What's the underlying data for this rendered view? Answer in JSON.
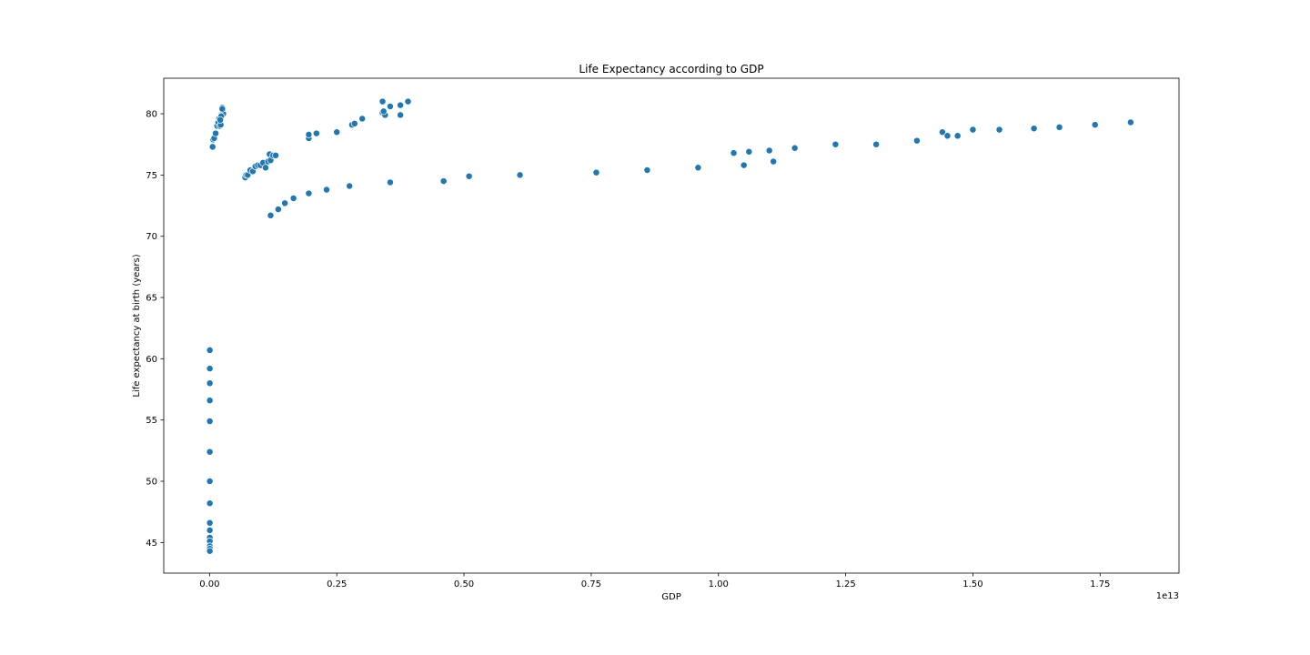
{
  "chart_data": {
    "type": "scatter",
    "title": "Life Expectancy according to GDP",
    "xlabel": "GDP",
    "ylabel": "Life expectancy at birth (years)",
    "x_offset_label": "1e13",
    "x_scale": 10000000000000.0,
    "xlim": [
      -0.09,
      1.905
    ],
    "ylim": [
      42.5,
      82.9
    ],
    "xticks": [
      0.0,
      0.25,
      0.5,
      0.75,
      1.0,
      1.25,
      1.5,
      1.75
    ],
    "xtick_labels": [
      "0.00",
      "0.25",
      "0.50",
      "0.75",
      "1.00",
      "1.25",
      "1.50",
      "1.75"
    ],
    "yticks": [
      45,
      50,
      55,
      60,
      65,
      70,
      75,
      80
    ],
    "ytick_labels": [
      "45",
      "50",
      "55",
      "60",
      "65",
      "70",
      "75",
      "80"
    ],
    "point_color": "#1f77b4",
    "grid": false,
    "series": [
      {
        "x": [
          0.006,
          0.007,
          0.009,
          0.012,
          0.015,
          0.017,
          0.019,
          0.02,
          0.022,
          0.024,
          0.025,
          0.0255,
          0.026,
          0.027,
          0.025,
          0.023,
          0.021,
          0.07,
          0.072,
          0.075,
          0.08,
          0.085,
          0.09,
          0.095,
          0.1,
          0.105,
          0.11,
          0.115,
          0.118,
          0.12,
          0.125,
          0.13,
          0.195,
          0.195,
          0.21,
          0.25,
          0.28,
          0.285,
          0.3,
          0.34,
          0.34,
          0.345,
          0.355,
          0.375,
          0.375,
          0.39,
          0.342,
          0.12,
          0.135,
          0.148,
          0.165,
          0.195,
          0.23,
          0.275,
          0.355,
          0.46,
          0.51,
          0.61,
          0.76,
          0.86,
          0.96,
          1.03,
          1.05,
          1.06,
          1.1,
          1.108,
          1.15,
          1.23,
          1.31,
          1.39,
          1.44,
          1.45,
          1.47,
          1.5,
          1.552,
          1.62,
          1.67,
          1.74,
          1.81,
          0.0005,
          0.0005,
          0.0005,
          0.0005,
          0.0005,
          0.0005,
          0.0005,
          0.0005,
          0.0005,
          0.0005,
          0.0005,
          0.0005,
          0.0005,
          0.0005,
          0.0005
        ],
        "y": [
          77.3,
          77.9,
          78.0,
          78.4,
          79.0,
          79.3,
          79.6,
          79.0,
          79.1,
          80.0,
          80.5,
          80.3,
          80.2,
          80.0,
          80.4,
          79.8,
          79.5,
          74.8,
          75.0,
          75.0,
          75.4,
          75.3,
          75.7,
          75.8,
          75.8,
          76.0,
          75.6,
          76.1,
          76.7,
          76.2,
          76.6,
          76.6,
          78.0,
          78.3,
          78.4,
          78.5,
          79.1,
          79.2,
          79.6,
          81.0,
          80.1,
          79.9,
          80.6,
          80.7,
          79.9,
          81.0,
          80.2,
          71.7,
          72.2,
          72.7,
          73.1,
          73.5,
          73.8,
          74.1,
          74.4,
          74.5,
          74.9,
          75.0,
          75.2,
          75.4,
          75.6,
          76.8,
          75.8,
          76.9,
          77.0,
          76.1,
          77.2,
          77.5,
          77.5,
          77.8,
          78.5,
          78.2,
          78.2,
          78.7,
          78.7,
          78.8,
          78.9,
          79.1,
          79.3,
          60.7,
          59.2,
          58.0,
          56.6,
          54.9,
          52.4,
          50.0,
          48.2,
          46.6,
          46.0,
          45.4,
          45.1,
          44.7,
          44.5,
          44.3
        ]
      }
    ]
  }
}
